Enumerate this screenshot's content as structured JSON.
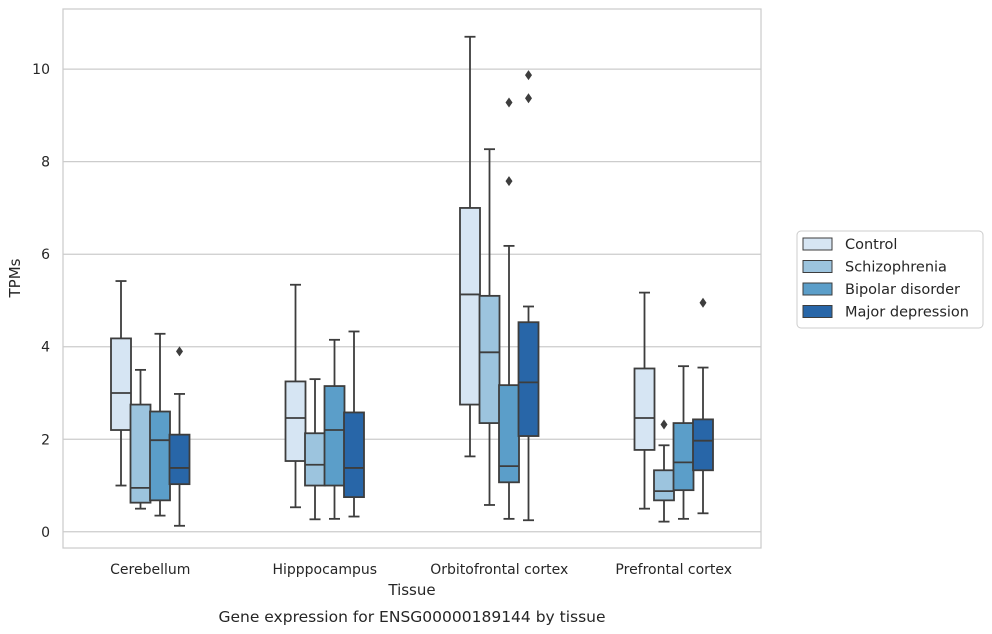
{
  "chart_data": {
    "type": "box",
    "title": "",
    "caption": "Gene expression for ENSG00000189144 by tissue",
    "xlabel": "Tissue",
    "ylabel": "TPMs",
    "ylim": [
      -0.35,
      11.3
    ],
    "yticks": [
      0,
      2,
      4,
      6,
      8,
      10
    ],
    "ytick_labels": [
      "0",
      "2",
      "4",
      "6",
      "8",
      "10"
    ],
    "grid": "horizontal",
    "legend_position": "right",
    "categories": [
      "Cerebellum",
      "Hipppocampus",
      "Orbitofrontal cortex",
      "Prefrontal cortex"
    ],
    "series": [
      {
        "name": "Control",
        "color": "#d6e5f3",
        "boxes": [
          {
            "whislo": 1.0,
            "q1": 2.2,
            "med": 3.0,
            "q3": 4.18,
            "whishi": 5.42,
            "fliers": []
          },
          {
            "whislo": 0.53,
            "q1": 1.53,
            "med": 2.46,
            "q3": 3.25,
            "whishi": 5.34,
            "fliers": []
          },
          {
            "whislo": 1.63,
            "q1": 2.75,
            "med": 5.13,
            "q3": 7.0,
            "whishi": 10.7,
            "fliers": []
          },
          {
            "whislo": 0.5,
            "q1": 1.77,
            "med": 2.46,
            "q3": 3.53,
            "whishi": 5.17,
            "fliers": []
          }
        ]
      },
      {
        "name": "Schizophrenia",
        "color": "#9cc4de",
        "boxes": [
          {
            "whislo": 0.5,
            "q1": 0.63,
            "med": 0.95,
            "q3": 2.75,
            "whishi": 3.5,
            "fliers": []
          },
          {
            "whislo": 0.27,
            "q1": 1.0,
            "med": 1.45,
            "q3": 2.13,
            "whishi": 3.3,
            "fliers": []
          },
          {
            "whislo": 0.58,
            "q1": 2.35,
            "med": 3.88,
            "q3": 5.1,
            "whishi": 8.27,
            "fliers": []
          },
          {
            "whislo": 0.22,
            "q1": 0.68,
            "med": 0.88,
            "q3": 1.33,
            "whishi": 1.87,
            "fliers": [
              2.32
            ]
          }
        ]
      },
      {
        "name": "Bipolar disorder",
        "color": "#5b9ec9",
        "boxes": [
          {
            "whislo": 0.35,
            "q1": 0.68,
            "med": 1.98,
            "q3": 2.6,
            "whishi": 4.28,
            "fliers": []
          },
          {
            "whislo": 0.28,
            "q1": 1.0,
            "med": 2.2,
            "q3": 3.15,
            "whishi": 4.15,
            "fliers": []
          },
          {
            "whislo": 0.28,
            "q1": 1.07,
            "med": 1.42,
            "q3": 3.17,
            "whishi": 6.18,
            "fliers": [
              7.58,
              9.28
            ]
          },
          {
            "whislo": 0.28,
            "q1": 0.9,
            "med": 1.5,
            "q3": 2.35,
            "whishi": 3.58,
            "fliers": []
          }
        ]
      },
      {
        "name": "Major depression",
        "color": "#2866a8",
        "boxes": [
          {
            "whislo": 0.13,
            "q1": 1.03,
            "med": 1.38,
            "q3": 2.1,
            "whishi": 2.98,
            "fliers": [
              3.9
            ]
          },
          {
            "whislo": 0.33,
            "q1": 0.75,
            "med": 1.38,
            "q3": 2.58,
            "whishi": 4.33,
            "fliers": []
          },
          {
            "whislo": 0.25,
            "q1": 2.07,
            "med": 3.23,
            "q3": 4.53,
            "whishi": 4.87,
            "fliers": [
              9.37,
              9.87
            ]
          },
          {
            "whislo": 0.4,
            "q1": 1.33,
            "med": 1.97,
            "q3": 2.43,
            "whishi": 3.55,
            "fliers": [
              4.95
            ]
          }
        ]
      }
    ]
  }
}
